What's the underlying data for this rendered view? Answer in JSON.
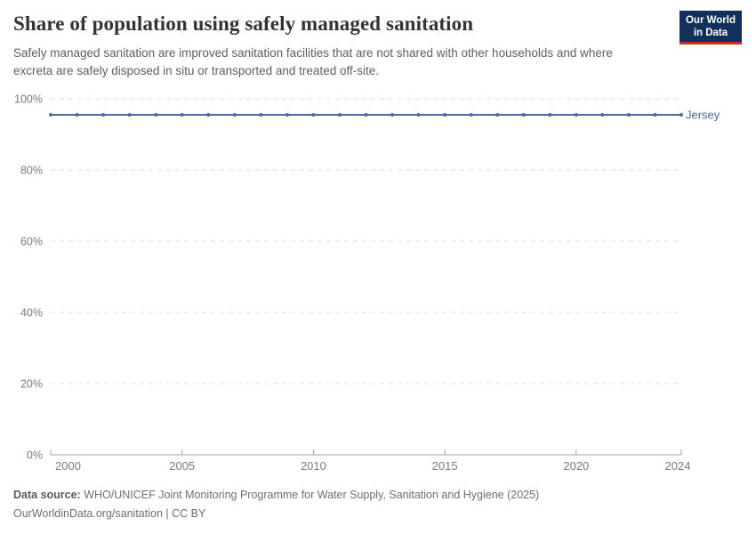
{
  "header": {
    "title": "Share of population using safely managed sanitation",
    "subtitle": "Safely managed sanitation are improved sanitation facilities that are not shared with other households and where excreta are safely disposed in situ or transported and treated off-site.",
    "logo": {
      "line1": "Our World",
      "line2": "in Data",
      "bg_color": "#12305b",
      "accent_color": "#cf2d1c"
    }
  },
  "chart_data": {
    "type": "line",
    "title": "Share of population using safely managed sanitation",
    "x": [
      2000,
      2001,
      2002,
      2003,
      2004,
      2005,
      2006,
      2007,
      2008,
      2009,
      2010,
      2011,
      2012,
      2013,
      2014,
      2015,
      2016,
      2017,
      2018,
      2019,
      2020,
      2021,
      2022,
      2023,
      2024
    ],
    "series": [
      {
        "name": "Jersey",
        "color": "#4C6A9C",
        "values": [
          95.5,
          95.5,
          95.5,
          95.5,
          95.5,
          95.5,
          95.5,
          95.5,
          95.5,
          95.5,
          95.5,
          95.5,
          95.5,
          95.5,
          95.5,
          95.5,
          95.5,
          95.5,
          95.5,
          95.5,
          95.5,
          95.5,
          95.5,
          95.5,
          95.5
        ]
      }
    ],
    "xlabel": "",
    "ylabel": "",
    "xlim": [
      2000,
      2024
    ],
    "ylim": [
      0,
      100
    ],
    "xticks": [
      2000,
      2005,
      2010,
      2015,
      2020,
      2024
    ],
    "yticks": [
      0,
      20,
      40,
      60,
      80,
      100
    ],
    "ytick_suffix": "%",
    "grid": "horizontal-dashed",
    "legend_position": "end-of-line-label",
    "colors": {
      "grid": "#dedede",
      "axis": "#a3a3a3",
      "tick_label": "#7a7a7a"
    }
  },
  "footer": {
    "data_source_label": "Data source:",
    "data_source_text": " WHO/UNICEF Joint Monitoring Programme for Water Supply, Sanitation and Hygiene (2025)",
    "line2": "OurWorldinData.org/sanitation | CC BY"
  }
}
